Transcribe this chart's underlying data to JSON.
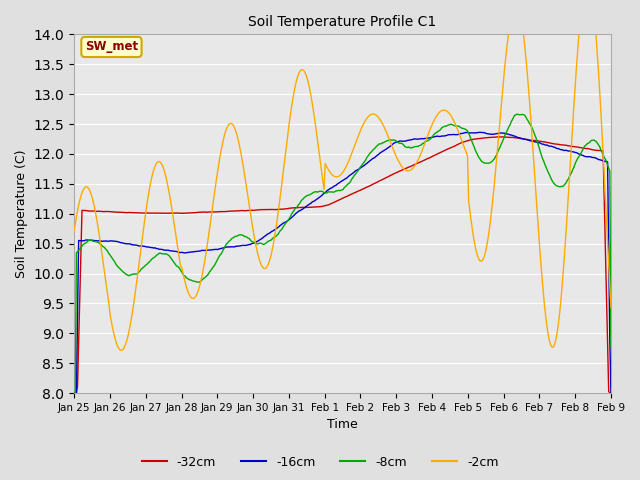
{
  "title": "Soil Temperature Profile C1",
  "xlabel": "Time",
  "ylabel": "Soil Temperature (C)",
  "ylim": [
    8.0,
    14.0
  ],
  "yticks": [
    8.0,
    8.5,
    9.0,
    9.5,
    10.0,
    10.5,
    11.0,
    11.5,
    12.0,
    12.5,
    13.0,
    13.5,
    14.0
  ],
  "fig_bg_color": "#e0e0e0",
  "plot_bg_color": "#e8e8e8",
  "grid_color": "#ffffff",
  "legend_label": "SW_met",
  "series_labels": [
    "-32cm",
    "-16cm",
    "-8cm",
    "-2cm"
  ],
  "series_colors": [
    "#cc0000",
    "#0000cc",
    "#00aa00",
    "#ffaa00"
  ],
  "x_tick_labels": [
    "Jan 25",
    "Jan 26",
    "Jan 27",
    "Jan 28",
    "Jan 29",
    "Jan 30",
    "Jan 31",
    "Feb 1",
    "Feb 2",
    "Feb 3",
    "Feb 4",
    "Feb 5",
    "Feb 6",
    "Feb 7",
    "Feb 8",
    "Feb 9"
  ],
  "n_points": 480,
  "days": 15
}
